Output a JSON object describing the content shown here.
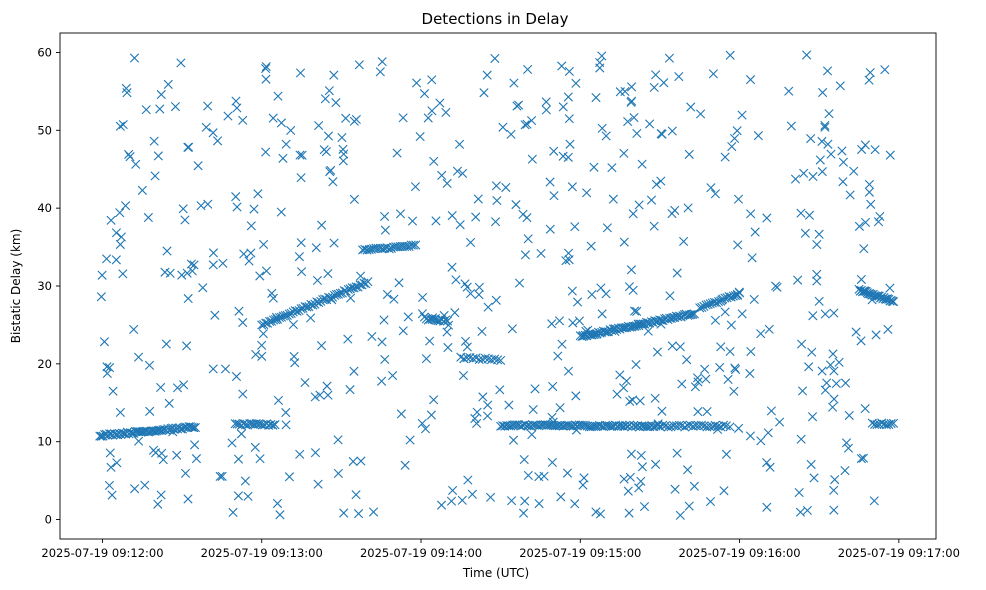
{
  "chart_data": {
    "type": "scatter",
    "title": "Detections in Delay",
    "xlabel": "Time (UTC)",
    "ylabel": "Bistatic Delay (km)",
    "x_is_time": true,
    "xlim": [
      "2025-07-19 09:11:44",
      "2025-07-19 09:17:14"
    ],
    "ylim": [
      -2.5,
      62.5
    ],
    "x_ticks": [
      "2025-07-19 09:12:00",
      "2025-07-19 09:13:00",
      "2025-07-19 09:14:00",
      "2025-07-19 09:15:00",
      "2025-07-19 09:16:00",
      "2025-07-19 09:17:00"
    ],
    "y_ticks": [
      0,
      10,
      20,
      30,
      40,
      50,
      60
    ],
    "marker": "x",
    "color": "#1f77b4",
    "grid": false,
    "legend": "none",
    "series": [
      {
        "note_tracks": "visible linear tracks",
        "tracks": [
          {
            "x_start": "2025-07-19 09:11:59",
            "y_start": 10.8,
            "x_end": "2025-07-19 09:12:35",
            "y_end": 11.9,
            "count": 60
          },
          {
            "x_start": "2025-07-19 09:12:50",
            "y_start": 12.2,
            "x_end": "2025-07-19 09:13:05",
            "y_end": 12.2,
            "count": 20
          },
          {
            "x_start": "2025-07-19 09:13:00",
            "y_start": 25.0,
            "x_end": "2025-07-19 09:13:40",
            "y_end": 30.5,
            "count": 55
          },
          {
            "x_start": "2025-07-19 09:13:38",
            "y_start": 34.6,
            "x_end": "2025-07-19 09:13:58",
            "y_end": 35.2,
            "count": 25
          },
          {
            "x_start": "2025-07-19 09:14:02",
            "y_start": 25.7,
            "x_end": "2025-07-19 09:14:10",
            "y_end": 25.5,
            "count": 12
          },
          {
            "x_start": "2025-07-19 09:14:15",
            "y_start": 20.8,
            "x_end": "2025-07-19 09:14:30",
            "y_end": 20.5,
            "count": 14
          },
          {
            "x_start": "2025-07-19 09:14:30",
            "y_start": 12.1,
            "x_end": "2025-07-19 09:15:30",
            "y_end": 12.0,
            "count": 80
          },
          {
            "x_start": "2025-07-19 09:15:00",
            "y_start": 23.5,
            "x_end": "2025-07-19 09:15:43",
            "y_end": 26.5,
            "count": 70
          },
          {
            "x_start": "2025-07-19 09:15:30",
            "y_start": 12.0,
            "x_end": "2025-07-19 09:15:55",
            "y_end": 12.0,
            "count": 25
          },
          {
            "x_start": "2025-07-19 09:15:45",
            "y_start": 27.2,
            "x_end": "2025-07-19 09:16:00",
            "y_end": 29.0,
            "count": 20
          },
          {
            "x_start": "2025-07-19 09:16:45",
            "y_start": 29.5,
            "x_end": "2025-07-19 09:16:58",
            "y_end": 28.0,
            "count": 30
          },
          {
            "x_start": "2025-07-19 09:16:50",
            "y_start": 12.3,
            "x_end": "2025-07-19 09:16:58",
            "y_end": 12.3,
            "count": 10
          }
        ],
        "clutter": {
          "x_range": [
            "2025-07-19 09:11:59",
            "2025-07-19 09:16:58"
          ],
          "y_range": [
            0.5,
            59.8
          ],
          "count": 620,
          "distribution": "uniform"
        }
      }
    ]
  }
}
